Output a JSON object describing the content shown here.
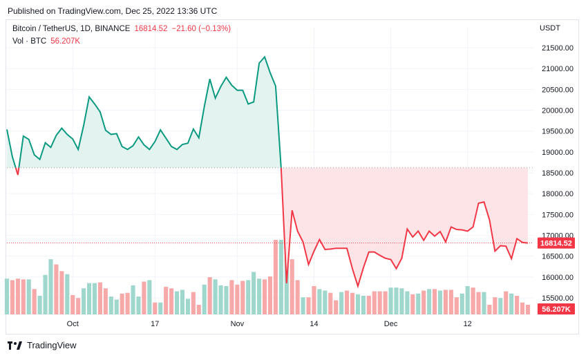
{
  "published": "Published on TradingView.com, Dec 25, 2022 13:36 UTC",
  "legend": {
    "symbol": "Bitcoin / TetherUS, 1D, BINANCE",
    "price": "16814.52",
    "change": "−21.60 (−0.13%)",
    "vol_label": "Vol · BTC",
    "vol_value": "56.207K"
  },
  "currency": "USDT",
  "footer": {
    "brand": "TradingView"
  },
  "colors": {
    "up": "#089981",
    "down": "#f23645",
    "up_fill": "#e3f3ef",
    "down_fill": "#fde4e6",
    "vol_up": "#9fd7cd",
    "vol_down": "#f7a9a9"
  },
  "chart_data": {
    "type": "area",
    "ylim": [
      15400,
      21700
    ],
    "yticks": [
      "21500.00",
      "21000.00",
      "20500.00",
      "20000.00",
      "19500.00",
      "19000.00",
      "18500.00",
      "18000.00",
      "17500.00",
      "17000.00",
      "16500.00",
      "16000.00",
      "15500.00"
    ],
    "xticks": [
      "Oct",
      "17",
      "Nov",
      "14",
      "Dec",
      "12"
    ],
    "baseline": 18620,
    "last_price": 16814.52,
    "last_price_label": "16814.52",
    "last_volume_label": "56.207K",
    "x_range": [
      0,
      95
    ],
    "x_tick_positions": [
      12,
      27,
      42,
      56,
      70,
      84
    ],
    "prices": [
      19540,
      18880,
      18450,
      19380,
      19300,
      18930,
      18820,
      19220,
      19110,
      19400,
      19570,
      19420,
      19310,
      19060,
      19640,
      20320,
      20150,
      19960,
      19520,
      19420,
      19440,
      19130,
      19060,
      19150,
      19360,
      19170,
      19060,
      19250,
      19530,
      19330,
      19130,
      19060,
      19180,
      19210,
      19550,
      19340,
      20090,
      20750,
      20290,
      20570,
      20790,
      20600,
      20480,
      20480,
      20150,
      20200,
      21130,
      21280,
      20900,
      20580,
      18620,
      15850,
      17600,
      17100,
      16840,
      16300,
      16620,
      16900,
      16660,
      16670,
      16690,
      16690,
      16690,
      16200,
      15780,
      16220,
      16600,
      16600,
      16520,
      16450,
      16420,
      16200,
      16450,
      17150,
      16960,
      17100,
      16880,
      17100,
      16980,
      17090,
      16840,
      17200,
      17140,
      17130,
      17100,
      17200,
      17770,
      17800,
      17370,
      16620,
      16750,
      16740,
      16440,
      16920,
      16830,
      16814.52
    ],
    "volumes": [
      0.48,
      0.46,
      0.48,
      0.47,
      0.47,
      0.34,
      0.25,
      0.53,
      0.74,
      0.67,
      0.58,
      0.54,
      0.26,
      0.22,
      0.35,
      0.42,
      0.42,
      0.43,
      0.35,
      0.24,
      0.2,
      0.28,
      0.29,
      0.39,
      0.24,
      0.44,
      0.46,
      0.16,
      0.16,
      0.37,
      0.35,
      0.31,
      0.33,
      0.21,
      0.3,
      0.13,
      0.4,
      0.5,
      0.47,
      0.39,
      0.38,
      0.46,
      0.4,
      0.45,
      0.46,
      0.57,
      0.48,
      0.47,
      0.51,
      1.0,
      1.0,
      0.77,
      0.74,
      0.46,
      0.23,
      0.23,
      0.38,
      0.34,
      0.32,
      0.29,
      0.19,
      0.3,
      0.32,
      0.29,
      0.27,
      0.25,
      0.25,
      0.31,
      0.31,
      0.31,
      0.36,
      0.36,
      0.35,
      0.31,
      0.27,
      0.28,
      0.32,
      0.34,
      0.34,
      0.32,
      0.33,
      0.33,
      0.23,
      0.28,
      0.38,
      0.36,
      0.3,
      0.3,
      0.13,
      0.23,
      0.22,
      0.31,
      0.28,
      0.25,
      0.16,
      0.13
    ],
    "volume_up": [
      1,
      0,
      0,
      0,
      1,
      0,
      1,
      1,
      1,
      0,
      0,
      1,
      0,
      0,
      1,
      1,
      1,
      0,
      0,
      1,
      1,
      0,
      0,
      1,
      1,
      0,
      1,
      0,
      1,
      0,
      0,
      1,
      1,
      1,
      0,
      0,
      1,
      0,
      1,
      1,
      1,
      0,
      0,
      0,
      1,
      1,
      1,
      0,
      0,
      0,
      1,
      1,
      0,
      0,
      1,
      0,
      0,
      1,
      1,
      0,
      0,
      1,
      0,
      0,
      1,
      1,
      0,
      0,
      0,
      0,
      1,
      1,
      1,
      1,
      0,
      1,
      0,
      1,
      0,
      1,
      0,
      0,
      0,
      1,
      1,
      0,
      0,
      1,
      0,
      0,
      1,
      0,
      1,
      0,
      0,
      0
    ]
  }
}
